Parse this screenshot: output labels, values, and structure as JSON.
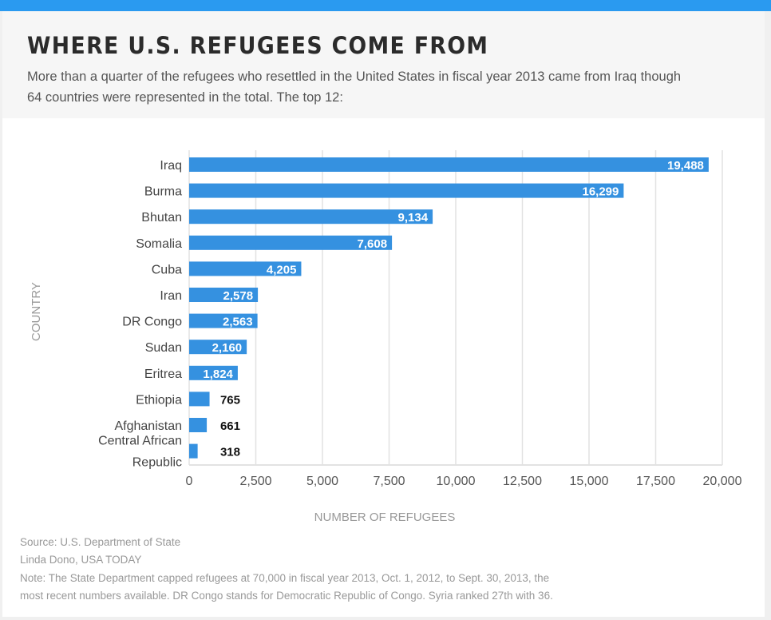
{
  "header": {
    "title": "WHERE U.S. REFUGEES COME FROM",
    "subtitle": "More than a quarter of the refugees who resettled in the United States in fiscal year 2013 came from Iraq though 64 countries were represented in the total. The top 12:"
  },
  "chart_data": {
    "type": "bar",
    "orientation": "horizontal",
    "categories": [
      "Iraq",
      "Burma",
      "Bhutan",
      "Somalia",
      "Cuba",
      "Iran",
      "DR Congo",
      "Sudan",
      "Eritrea",
      "Ethiopia",
      "Afghanistan",
      "Central African Republic"
    ],
    "values": [
      19488,
      16299,
      9134,
      7608,
      4205,
      2578,
      2563,
      2160,
      1824,
      765,
      661,
      318
    ],
    "value_labels": [
      "19,488",
      "16,299",
      "9,134",
      "7,608",
      "4,205",
      "2,578",
      "2,563",
      "2,160",
      "1,824",
      "765",
      "661",
      "318"
    ],
    "xlabel": "NUMBER OF REFUGEES",
    "ylabel": "COUNTRY",
    "xlim": [
      0,
      20000
    ],
    "xticks": [
      0,
      2500,
      5000,
      7500,
      10000,
      12500,
      15000,
      17500,
      20000
    ],
    "xtick_labels": [
      "0",
      "2,500",
      "5,000",
      "7,500",
      "10,000",
      "12,500",
      "15,000",
      "17,500",
      "20,000"
    ],
    "grid": true,
    "bar_color": "#3591e0"
  },
  "footer": {
    "source": "Source: U.S. Department of State",
    "credit": "Linda Dono, USA TODAY",
    "note_line1": "Note: The State Department capped refugees at 70,000 in fiscal year 2013, Oct. 1, 2012, to Sept. 30, 2013, the",
    "note_line2": "most recent numbers available. DR Congo stands for Democratic Republic of Congo. Syria ranked 27th with 36."
  }
}
